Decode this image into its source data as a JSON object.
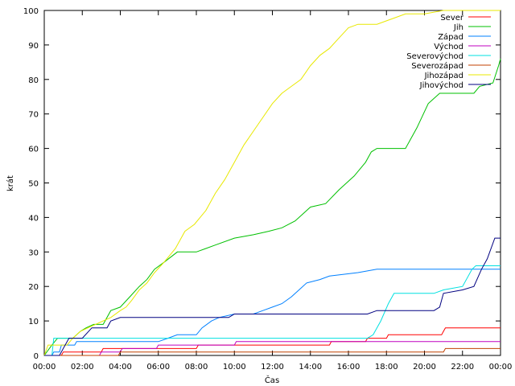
{
  "chart_data": {
    "type": "line",
    "xlabel": "Čas",
    "ylabel": "krát",
    "xlim": [
      0,
      24
    ],
    "ylim": [
      0,
      100
    ],
    "x_ticks": [
      {
        "value": 0,
        "label": "00:00"
      },
      {
        "value": 2,
        "label": "02:00"
      },
      {
        "value": 4,
        "label": "04:00"
      },
      {
        "value": 6,
        "label": "06:00"
      },
      {
        "value": 8,
        "label": "08:00"
      },
      {
        "value": 10,
        "label": "10:00"
      },
      {
        "value": 12,
        "label": "12:00"
      },
      {
        "value": 14,
        "label": "14:00"
      },
      {
        "value": 16,
        "label": "16:00"
      },
      {
        "value": 18,
        "label": "18:00"
      },
      {
        "value": 20,
        "label": "20:00"
      },
      {
        "value": 22,
        "label": "22:00"
      },
      {
        "value": 24,
        "label": "00:00"
      }
    ],
    "y_ticks": [
      0,
      10,
      20,
      30,
      40,
      50,
      60,
      70,
      80,
      90,
      100
    ],
    "grid": false,
    "legend_position": "top-right",
    "series": [
      {
        "name": "Sever",
        "color": "#ff0000",
        "points": [
          [
            0,
            0
          ],
          [
            0.9,
            0
          ],
          [
            1.0,
            1
          ],
          [
            3.0,
            1
          ],
          [
            3.1,
            2
          ],
          [
            6.0,
            2
          ],
          [
            8.0,
            2
          ],
          [
            8.1,
            3
          ],
          [
            14.0,
            3
          ],
          [
            15.0,
            3
          ],
          [
            15.1,
            4
          ],
          [
            16.9,
            4
          ],
          [
            17.0,
            5
          ],
          [
            18.0,
            5
          ],
          [
            18.1,
            6
          ],
          [
            20.9,
            6
          ],
          [
            21.0,
            7
          ],
          [
            21.1,
            8
          ],
          [
            24,
            8
          ]
        ]
      },
      {
        "name": "Jih",
        "color": "#00c000",
        "points": [
          [
            0,
            0
          ],
          [
            0.4,
            3
          ],
          [
            0.7,
            5
          ],
          [
            1.5,
            5
          ],
          [
            1.9,
            7
          ],
          [
            2.2,
            8
          ],
          [
            2.6,
            9
          ],
          [
            3.1,
            9
          ],
          [
            3.5,
            13
          ],
          [
            4.0,
            14
          ],
          [
            4.5,
            17
          ],
          [
            5.0,
            20
          ],
          [
            5.4,
            22
          ],
          [
            5.8,
            25
          ],
          [
            6.3,
            27
          ],
          [
            7.0,
            30
          ],
          [
            8.0,
            30
          ],
          [
            9.0,
            32
          ],
          [
            10.0,
            34
          ],
          [
            11.0,
            35
          ],
          [
            11.8,
            36
          ],
          [
            12.5,
            37
          ],
          [
            13.2,
            39
          ],
          [
            14.0,
            43
          ],
          [
            14.8,
            44
          ],
          [
            15.5,
            48
          ],
          [
            16.3,
            52
          ],
          [
            16.9,
            56
          ],
          [
            17.2,
            59
          ],
          [
            17.5,
            60
          ],
          [
            19.0,
            60
          ],
          [
            19.6,
            66
          ],
          [
            20.2,
            73
          ],
          [
            20.8,
            76
          ],
          [
            22.6,
            76
          ],
          [
            22.9,
            78
          ],
          [
            23.6,
            79
          ],
          [
            23.9,
            84
          ],
          [
            24,
            86
          ]
        ]
      },
      {
        "name": "Západ",
        "color": "#0080ff",
        "points": [
          [
            0,
            0
          ],
          [
            0.4,
            0
          ],
          [
            0.5,
            1
          ],
          [
            0.8,
            1
          ],
          [
            0.9,
            3
          ],
          [
            1.6,
            3
          ],
          [
            1.7,
            4
          ],
          [
            6.0,
            4
          ],
          [
            6.5,
            5
          ],
          [
            7.0,
            6
          ],
          [
            8.0,
            6
          ],
          [
            8.3,
            8
          ],
          [
            8.8,
            10
          ],
          [
            9.2,
            11
          ],
          [
            10.0,
            12
          ],
          [
            11.0,
            12
          ],
          [
            11.5,
            13
          ],
          [
            12.0,
            14
          ],
          [
            12.5,
            15
          ],
          [
            13.0,
            17
          ],
          [
            13.4,
            19
          ],
          [
            13.8,
            21
          ],
          [
            14.5,
            22
          ],
          [
            15.0,
            23
          ],
          [
            16.5,
            24
          ],
          [
            17.5,
            25
          ],
          [
            24,
            25
          ]
        ]
      },
      {
        "name": "Východ",
        "color": "#c000c0",
        "points": [
          [
            0,
            0
          ],
          [
            2.9,
            0
          ],
          [
            3.0,
            1
          ],
          [
            4.0,
            1
          ],
          [
            4.1,
            2
          ],
          [
            5.9,
            2
          ],
          [
            6.0,
            3
          ],
          [
            10.0,
            3
          ],
          [
            10.1,
            4
          ],
          [
            24,
            4
          ]
        ]
      },
      {
        "name": "Severovýchod",
        "color": "#00e0e0",
        "points": [
          [
            0,
            0
          ],
          [
            0.4,
            0
          ],
          [
            0.5,
            5
          ],
          [
            17.0,
            5
          ],
          [
            17.3,
            6
          ],
          [
            17.7,
            10
          ],
          [
            18.1,
            15
          ],
          [
            18.4,
            18
          ],
          [
            20.5,
            18
          ],
          [
            21.0,
            19
          ],
          [
            22.0,
            20
          ],
          [
            22.5,
            25
          ],
          [
            22.7,
            26
          ],
          [
            24,
            26
          ]
        ]
      },
      {
        "name": "Severozápad",
        "color": "#c04000",
        "points": [
          [
            0,
            0
          ],
          [
            3.9,
            0
          ],
          [
            4.0,
            1
          ],
          [
            21.0,
            1
          ],
          [
            21.1,
            2
          ],
          [
            24,
            2
          ]
        ]
      },
      {
        "name": "Jihozápad",
        "color": "#e8e800",
        "points": [
          [
            0,
            0
          ],
          [
            0.2,
            3
          ],
          [
            0.6,
            3
          ],
          [
            1.2,
            3
          ],
          [
            1.5,
            5
          ],
          [
            1.9,
            7
          ],
          [
            2.3,
            8
          ],
          [
            3.1,
            10
          ],
          [
            3.5,
            11
          ],
          [
            4.0,
            13
          ],
          [
            4.3,
            14
          ],
          [
            4.6,
            16
          ],
          [
            5.0,
            19
          ],
          [
            5.4,
            21
          ],
          [
            5.8,
            24
          ],
          [
            6.3,
            27
          ],
          [
            6.9,
            31
          ],
          [
            7.4,
            36
          ],
          [
            7.9,
            38
          ],
          [
            8.5,
            42
          ],
          [
            9.0,
            47
          ],
          [
            9.5,
            51
          ],
          [
            10.0,
            56
          ],
          [
            10.5,
            61
          ],
          [
            11.0,
            65
          ],
          [
            11.5,
            69
          ],
          [
            12.0,
            73
          ],
          [
            12.5,
            76
          ],
          [
            13.0,
            78
          ],
          [
            13.5,
            80
          ],
          [
            14.0,
            84
          ],
          [
            14.5,
            87
          ],
          [
            15.0,
            89
          ],
          [
            15.5,
            92
          ],
          [
            16.0,
            95
          ],
          [
            16.5,
            96
          ],
          [
            17.5,
            96
          ],
          [
            18.0,
            97
          ],
          [
            18.5,
            98
          ],
          [
            19.0,
            99
          ],
          [
            20.0,
            99
          ],
          [
            21.0,
            100
          ],
          [
            24,
            100
          ]
        ]
      },
      {
        "name": "Jihovýchod",
        "color": "#000080",
        "points": [
          [
            0,
            0
          ],
          [
            0.8,
            0
          ],
          [
            1.0,
            2
          ],
          [
            1.3,
            5
          ],
          [
            2.0,
            5
          ],
          [
            2.5,
            8
          ],
          [
            3.3,
            8
          ],
          [
            3.5,
            10
          ],
          [
            4.0,
            11
          ],
          [
            9.7,
            11
          ],
          [
            10.0,
            12
          ],
          [
            17.0,
            12
          ],
          [
            17.5,
            13
          ],
          [
            20.5,
            13
          ],
          [
            20.8,
            14
          ],
          [
            21.0,
            18
          ],
          [
            22.0,
            19
          ],
          [
            22.6,
            20
          ],
          [
            23.0,
            25
          ],
          [
            23.3,
            28
          ],
          [
            23.7,
            34
          ],
          [
            24,
            34
          ]
        ]
      }
    ]
  }
}
